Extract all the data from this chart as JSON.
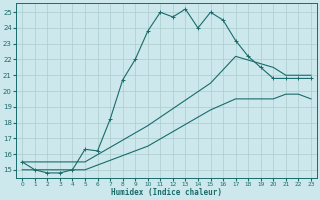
{
  "background_color": "#cce8ec",
  "grid_color": "#aacccc",
  "line_color": "#1a6b6b",
  "xlim": [
    -0.5,
    23.5
  ],
  "ylim": [
    14.5,
    25.6
  ],
  "yticks": [
    15,
    16,
    17,
    18,
    19,
    20,
    21,
    22,
    23,
    24,
    25
  ],
  "xticks": [
    0,
    1,
    2,
    3,
    4,
    5,
    6,
    7,
    8,
    9,
    10,
    11,
    12,
    13,
    14,
    15,
    16,
    17,
    18,
    19,
    20,
    21,
    22,
    23
  ],
  "xlabel": "Humidex (Indice chaleur)",
  "lines": [
    {
      "x": [
        0,
        1,
        2,
        3,
        4,
        5,
        6,
        7,
        8,
        9,
        10,
        11,
        12,
        13,
        14,
        15,
        16,
        17,
        18,
        19,
        20,
        21,
        22,
        23
      ],
      "y": [
        15.5,
        15.0,
        14.8,
        14.8,
        15.0,
        16.3,
        16.2,
        18.2,
        20.7,
        22.0,
        23.8,
        25.0,
        24.7,
        25.2,
        24.0,
        25.0,
        24.5,
        23.2,
        22.2,
        21.5,
        20.8,
        20.8,
        20.8,
        20.8
      ],
      "marker": true
    },
    {
      "x": [
        0,
        5,
        10,
        15,
        17,
        20,
        21,
        22,
        23
      ],
      "y": [
        15.5,
        15.5,
        17.8,
        20.5,
        22.2,
        21.5,
        21.0,
        21.0,
        21.0
      ],
      "marker": false
    },
    {
      "x": [
        0,
        5,
        10,
        15,
        17,
        20,
        21,
        22,
        23
      ],
      "y": [
        15.0,
        15.0,
        16.5,
        18.8,
        19.5,
        19.5,
        19.8,
        19.8,
        19.5
      ],
      "marker": false
    }
  ]
}
